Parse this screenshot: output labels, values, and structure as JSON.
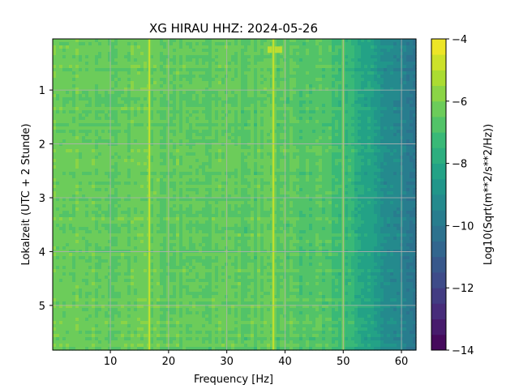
{
  "chart_data": {
    "type": "heatmap",
    "title": "XG HIRAU  HHZ: 2024-05-26",
    "xlabel": "Frequency [Hz]",
    "ylabel": "Lokalzeit (UTC + 2 Stunde)",
    "colorbar_label": "Log10(Sqrt(m**2/s**2/Hz))",
    "xlim": [
      0.1,
      62.5
    ],
    "ylim": [
      5.83,
      0.05
    ],
    "x_ticks": [
      10,
      20,
      30,
      40,
      50,
      60
    ],
    "y_ticks": [
      1,
      2,
      3,
      4,
      5
    ],
    "colorbar_range": [
      -14,
      -4
    ],
    "colorbar_ticks": [
      -14,
      -12,
      -10,
      -8,
      -6,
      -4
    ],
    "colormap": "viridis",
    "grid": true,
    "baseline_level": [
      {
        "freq": 0,
        "value": -6.3
      },
      {
        "freq": 40,
        "value": -6.5
      },
      {
        "freq": 48,
        "value": -6.9
      },
      {
        "freq": 50,
        "value": -7.2
      },
      {
        "freq": 53,
        "value": -7.9
      },
      {
        "freq": 56,
        "value": -8.7
      },
      {
        "freq": 59,
        "value": -9.4
      },
      {
        "freq": 62.5,
        "value": -10.0
      }
    ],
    "spectral_lines": [
      {
        "freq": 16.7,
        "value": -4.9
      },
      {
        "freq": 38.0,
        "value": -4.8
      },
      {
        "freq": 50.0,
        "value": -5.6
      }
    ],
    "events": [
      {
        "time": 0.25,
        "freq_range": [
          37,
          39.5
        ],
        "value": -4.9
      }
    ]
  }
}
